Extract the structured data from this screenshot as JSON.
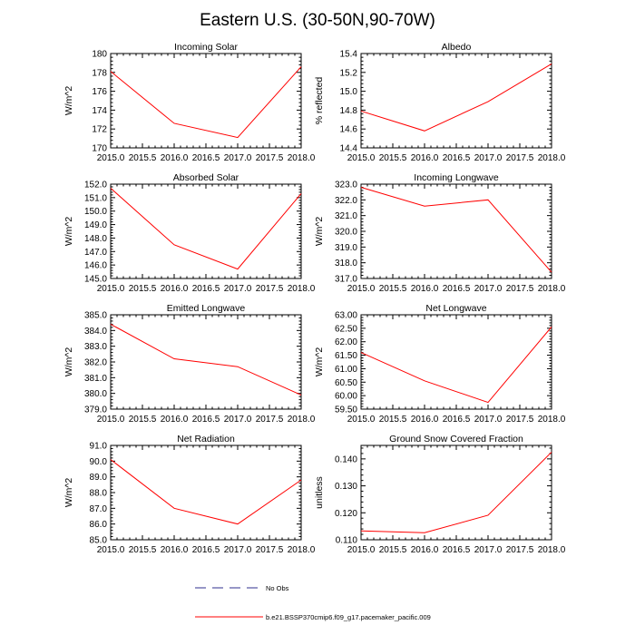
{
  "figure": {
    "title": "Eastern U.S. (30-50N,90-70W)"
  },
  "legend": {
    "items": [
      {
        "label": "No Obs",
        "style": "dashed",
        "color": "#2f2f8f"
      },
      {
        "label": "b.e21.BSSP370cmip6.f09_g17.pacemaker_pacific.009",
        "style": "solid",
        "color": "#ff0000"
      }
    ]
  },
  "chart_data": [
    {
      "type": "line",
      "title": "Incoming Solar",
      "ylabel": "W/m^2",
      "x": [
        2015.0,
        2016.0,
        2017.0,
        2018.0
      ],
      "xlim": [
        2015.0,
        2018.0
      ],
      "xticks": [
        "2015.0",
        "2015.5",
        "2016.0",
        "2016.5",
        "2017.0",
        "2017.5",
        "2018.0"
      ],
      "ylim": [
        170,
        180
      ],
      "yticks": [
        "170",
        "172",
        "174",
        "176",
        "178",
        "180"
      ],
      "series": [
        {
          "name": "b.e21.BSSP370cmip6.f09_g17.pacemaker_pacific.009",
          "color": "#ff0000",
          "values": [
            178.1,
            172.6,
            171.1,
            178.6
          ]
        }
      ]
    },
    {
      "type": "line",
      "title": "Albedo",
      "ylabel": "% reflected",
      "x": [
        2015.0,
        2016.0,
        2017.0,
        2018.0
      ],
      "xlim": [
        2015.0,
        2018.0
      ],
      "xticks": [
        "2015.0",
        "2015.5",
        "2016.0",
        "2016.5",
        "2017.0",
        "2017.5",
        "2018.0"
      ],
      "ylim": [
        14.4,
        15.4
      ],
      "yticks": [
        "14.4",
        "14.6",
        "14.8",
        "15.0",
        "15.2",
        "15.4"
      ],
      "series": [
        {
          "name": "b.e21.BSSP370cmip6.f09_g17.pacemaker_pacific.009",
          "color": "#ff0000",
          "values": [
            14.79,
            14.58,
            14.89,
            15.29
          ]
        }
      ]
    },
    {
      "type": "line",
      "title": "Absorbed Solar",
      "ylabel": "W/m^2",
      "x": [
        2015.0,
        2016.0,
        2017.0,
        2018.0
      ],
      "xlim": [
        2015.0,
        2018.0
      ],
      "xticks": [
        "2015.0",
        "2015.5",
        "2016.0",
        "2016.5",
        "2017.0",
        "2017.5",
        "2018.0"
      ],
      "ylim": [
        145.0,
        152.0
      ],
      "yticks": [
        "145.0",
        "146.0",
        "147.0",
        "148.0",
        "149.0",
        "150.0",
        "151.0",
        "152.0"
      ],
      "series": [
        {
          "name": "b.e21.BSSP370cmip6.f09_g17.pacemaker_pacific.009",
          "color": "#ff0000",
          "values": [
            151.7,
            147.5,
            145.7,
            151.3
          ]
        }
      ]
    },
    {
      "type": "line",
      "title": "Incoming Longwave",
      "ylabel": "W/m^2",
      "x": [
        2015.0,
        2016.0,
        2017.0,
        2018.0
      ],
      "xlim": [
        2015.0,
        2018.0
      ],
      "xticks": [
        "2015.0",
        "2015.5",
        "2016.0",
        "2016.5",
        "2017.0",
        "2017.5",
        "2018.0"
      ],
      "ylim": [
        317.0,
        323.0
      ],
      "yticks": [
        "317.0",
        "318.0",
        "319.0",
        "320.0",
        "321.0",
        "322.0",
        "323.0"
      ],
      "series": [
        {
          "name": "b.e21.BSSP370cmip6.f09_g17.pacemaker_pacific.009",
          "color": "#ff0000",
          "values": [
            322.8,
            321.6,
            322.0,
            317.4
          ]
        }
      ]
    },
    {
      "type": "line",
      "title": "Emitted Longwave",
      "ylabel": "W/m^2",
      "x": [
        2015.0,
        2016.0,
        2017.0,
        2018.0
      ],
      "xlim": [
        2015.0,
        2018.0
      ],
      "xticks": [
        "2015.0",
        "2015.5",
        "2016.0",
        "2016.5",
        "2017.0",
        "2017.5",
        "2018.0"
      ],
      "ylim": [
        379.0,
        385.0
      ],
      "yticks": [
        "379.0",
        "380.0",
        "381.0",
        "382.0",
        "383.0",
        "384.0",
        "385.0"
      ],
      "series": [
        {
          "name": "b.e21.BSSP370cmip6.f09_g17.pacemaker_pacific.009",
          "color": "#ff0000",
          "values": [
            384.4,
            382.2,
            381.7,
            379.9
          ]
        }
      ]
    },
    {
      "type": "line",
      "title": "Net Longwave",
      "ylabel": "W/m^2",
      "x": [
        2015.0,
        2016.0,
        2017.0,
        2018.0
      ],
      "xlim": [
        2015.0,
        2018.0
      ],
      "xticks": [
        "2015.0",
        "2015.5",
        "2016.0",
        "2016.5",
        "2017.0",
        "2017.5",
        "2018.0"
      ],
      "ylim": [
        59.5,
        63.0
      ],
      "yticks": [
        "59.50",
        "60.00",
        "60.50",
        "61.00",
        "61.50",
        "62.00",
        "62.50",
        "63.00"
      ],
      "series": [
        {
          "name": "b.e21.BSSP370cmip6.f09_g17.pacemaker_pacific.009",
          "color": "#ff0000",
          "values": [
            61.6,
            60.55,
            59.75,
            62.55
          ]
        }
      ]
    },
    {
      "type": "line",
      "title": "Net Radiation",
      "ylabel": "W/m^2",
      "x": [
        2015.0,
        2016.0,
        2017.0,
        2018.0
      ],
      "xlim": [
        2015.0,
        2018.0
      ],
      "xticks": [
        "2015.0",
        "2015.5",
        "2016.0",
        "2016.5",
        "2017.0",
        "2017.5",
        "2018.0"
      ],
      "ylim": [
        85.0,
        91.0
      ],
      "yticks": [
        "85.0",
        "86.0",
        "87.0",
        "88.0",
        "89.0",
        "90.0",
        "91.0"
      ],
      "series": [
        {
          "name": "b.e21.BSSP370cmip6.f09_g17.pacemaker_pacific.009",
          "color": "#ff0000",
          "values": [
            90.1,
            87.0,
            86.0,
            88.8
          ]
        }
      ]
    },
    {
      "type": "line",
      "title": "Ground Snow Covered Fraction",
      "ylabel": "unitless",
      "x": [
        2015.0,
        2016.0,
        2017.0,
        2018.0
      ],
      "xlim": [
        2015.0,
        2018.0
      ],
      "xticks": [
        "2015.0",
        "2015.5",
        "2016.0",
        "2016.5",
        "2017.0",
        "2017.5",
        "2018.0"
      ],
      "ylim": [
        0.11,
        0.145
      ],
      "yticks": [
        "0.110",
        "0.120",
        "0.130",
        "0.140"
      ],
      "ytick_values": [
        0.11,
        0.12,
        0.13,
        0.14
      ],
      "series": [
        {
          "name": "b.e21.BSSP370cmip6.f09_g17.pacemaker_pacific.009",
          "color": "#ff0000",
          "values": [
            0.1133,
            0.1126,
            0.1191,
            0.1425
          ]
        }
      ]
    }
  ]
}
